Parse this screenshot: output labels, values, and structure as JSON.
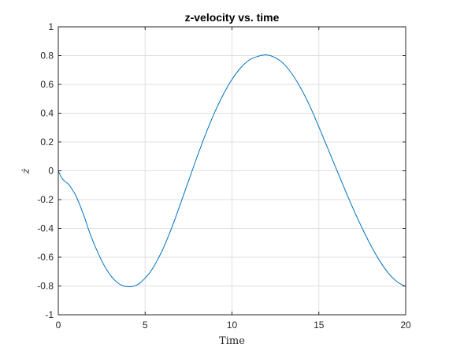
{
  "chart_data": {
    "type": "line",
    "title": "z-velocity vs. time",
    "xlabel": "Time",
    "ylabel": "ż",
    "xlim": [
      0,
      20
    ],
    "ylim": [
      -1,
      1
    ],
    "grid": true,
    "x_ticks": [
      0,
      5,
      10,
      15,
      20
    ],
    "x_tick_labels": [
      "0",
      "5",
      "10",
      "15",
      "20"
    ],
    "y_ticks": [
      -1,
      -0.8,
      -0.6,
      -0.4,
      -0.2,
      0,
      0.2,
      0.4,
      0.6,
      0.8,
      1
    ],
    "y_tick_labels": [
      "-1",
      "-0.8",
      "-0.6",
      "-0.4",
      "-0.2",
      "0",
      "0.2",
      "0.4",
      "0.6",
      "0.8",
      "1"
    ],
    "series": [
      {
        "color": "#0072bd",
        "x": [
          0,
          0.2,
          0.4,
          0.6,
          0.8,
          1,
          1.25,
          1.5,
          1.75,
          2,
          2.25,
          2.5,
          2.75,
          3,
          3.25,
          3.5,
          3.75,
          4,
          4.2,
          4.5,
          4.75,
          5,
          5.25,
          5.5,
          5.75,
          6,
          6.25,
          6.5,
          6.75,
          7,
          7.25,
          7.5,
          7.75,
          8,
          8.5,
          9,
          9.5,
          10,
          10.5,
          11,
          11.5,
          12,
          12.5,
          13,
          13.5,
          14,
          14.5,
          15,
          15.5,
          16,
          16.5,
          17,
          17.5,
          18,
          18.5,
          19,
          19.5,
          20
        ],
        "y": [
          0,
          -0.05,
          -0.075,
          -0.095,
          -0.13,
          -0.17,
          -0.24,
          -0.32,
          -0.41,
          -0.49,
          -0.56,
          -0.625,
          -0.68,
          -0.725,
          -0.76,
          -0.785,
          -0.8,
          -0.805,
          -0.805,
          -0.795,
          -0.775,
          -0.745,
          -0.71,
          -0.665,
          -0.61,
          -0.55,
          -0.48,
          -0.405,
          -0.325,
          -0.24,
          -0.155,
          -0.07,
          0.015,
          0.1,
          0.26,
          0.405,
          0.53,
          0.635,
          0.715,
          0.77,
          0.795,
          0.805,
          0.785,
          0.74,
          0.665,
          0.565,
          0.445,
          0.305,
          0.16,
          0.015,
          -0.13,
          -0.27,
          -0.4,
          -0.52,
          -0.625,
          -0.71,
          -0.77,
          -0.805
        ]
      }
    ]
  }
}
